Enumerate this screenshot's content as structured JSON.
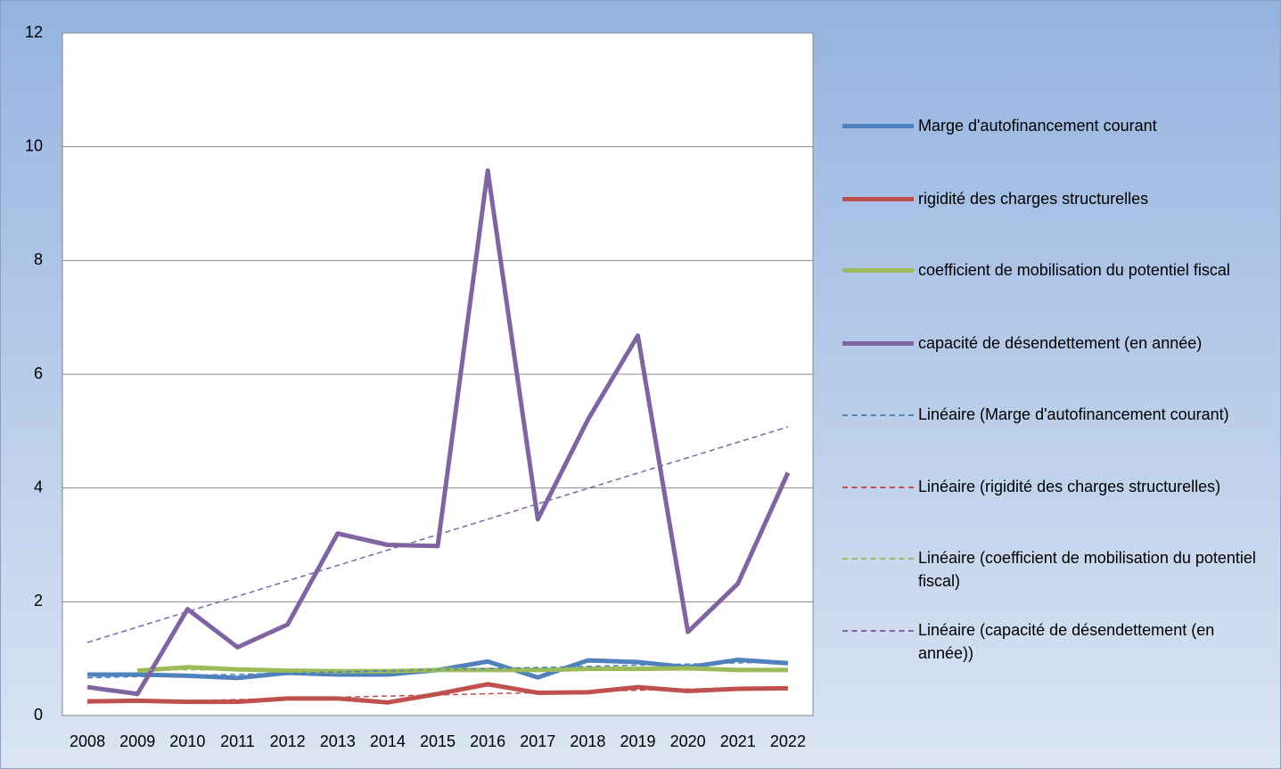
{
  "chart_data": {
    "type": "line",
    "categories": [
      "2008",
      "2009",
      "2010",
      "2011",
      "2012",
      "2013",
      "2014",
      "2015",
      "2016",
      "2017",
      "2018",
      "2019",
      "2020",
      "2021",
      "2022"
    ],
    "ylim": [
      0,
      12
    ],
    "yticks": [
      0,
      2,
      4,
      6,
      8,
      10,
      12
    ],
    "grid": true,
    "legend": "right",
    "series": [
      {
        "name": "Marge d'autofinancement courant",
        "color": "#4f81bd",
        "values": [
          0.72,
          0.72,
          0.7,
          0.66,
          0.75,
          0.72,
          0.72,
          0.8,
          0.95,
          0.67,
          0.97,
          0.94,
          0.85,
          0.98,
          0.92
        ]
      },
      {
        "name": "rigidité des charges structurelles",
        "color": "#c0504d",
        "values": [
          0.25,
          0.26,
          0.24,
          0.24,
          0.3,
          0.3,
          0.23,
          0.38,
          0.55,
          0.4,
          0.41,
          0.5,
          0.43,
          0.47,
          0.48
        ]
      },
      {
        "name": "coefficient de mobilisation du potentiel fiscal",
        "color": "#9bbb59",
        "values": [
          null,
          0.79,
          0.85,
          0.81,
          0.79,
          0.78,
          0.78,
          0.8,
          0.8,
          0.8,
          0.82,
          0.82,
          0.83,
          0.8,
          0.8
        ]
      },
      {
        "name": "capacité de désendettement (en année)",
        "color": "#8064a2",
        "values": [
          0.5,
          0.38,
          1.87,
          1.2,
          1.6,
          3.2,
          3.0,
          2.98,
          9.58,
          3.45,
          5.2,
          6.68,
          1.47,
          2.32,
          4.27
        ]
      },
      {
        "name": "Linéaire (Marge d'autofinancement courant)",
        "color": "#4f81bd",
        "trendline": "linear",
        "source": 0
      },
      {
        "name": "Linéaire (rigidité des charges structurelles)",
        "color": "#c0504d",
        "trendline": "linear",
        "source": 1
      },
      {
        "name": "Linéaire (coefficient de mobilisation du potentiel fiscal)",
        "color": "#9bbb59",
        "trendline": "linear",
        "source": 2
      },
      {
        "name": "Linéaire (capacité de désendettement (en année))",
        "color": "#8064a2",
        "trendline": "linear",
        "source": 3
      }
    ]
  }
}
